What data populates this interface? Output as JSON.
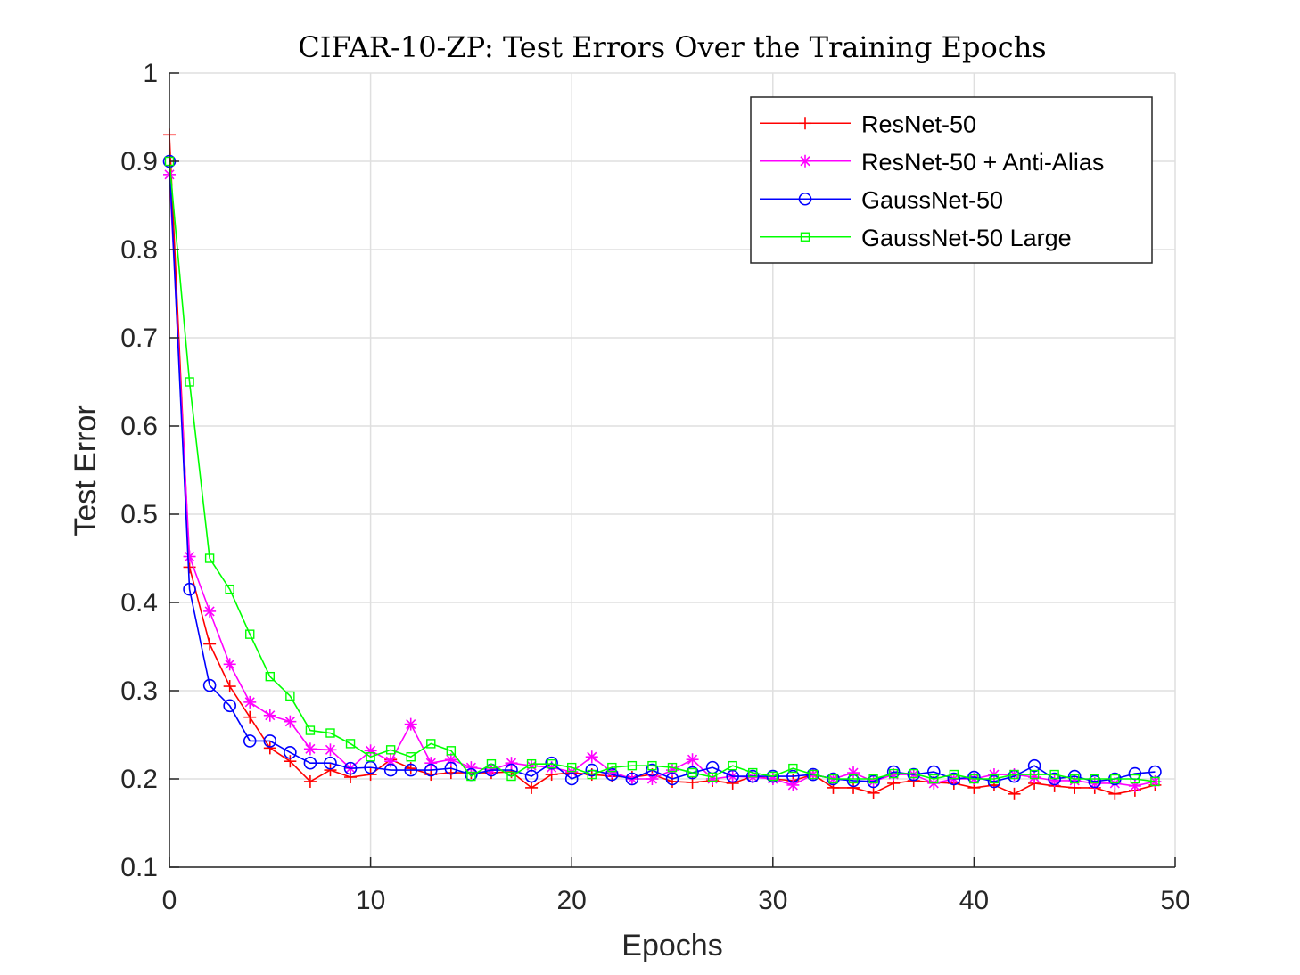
{
  "chart_data": {
    "type": "line",
    "title": "CIFAR-10-ZP: Test Errors Over the Training Epochs",
    "xlabel": "Epochs",
    "ylabel": "Test Error",
    "xlim": [
      0,
      50
    ],
    "ylim": [
      0.1,
      1
    ],
    "xticks": [
      0,
      10,
      20,
      30,
      40,
      50
    ],
    "yticks": [
      0.1,
      0.2,
      0.3,
      0.4,
      0.5,
      0.6,
      0.7,
      0.8,
      0.9,
      1
    ],
    "ytick_labels": [
      "0.1",
      "0.2",
      "0.3",
      "0.4",
      "0.5",
      "0.6",
      "0.7",
      "0.8",
      "0.9",
      "1"
    ],
    "grid": true,
    "legend_position": "top-right",
    "x": [
      0,
      1,
      2,
      3,
      4,
      5,
      6,
      7,
      8,
      9,
      10,
      11,
      12,
      13,
      14,
      15,
      16,
      17,
      18,
      19,
      20,
      21,
      22,
      23,
      24,
      25,
      26,
      27,
      28,
      29,
      30,
      31,
      32,
      33,
      34,
      35,
      36,
      37,
      38,
      39,
      40,
      41,
      42,
      43,
      44,
      45,
      46,
      47,
      48,
      49
    ],
    "series": [
      {
        "name": "ResNet-50",
        "color": "#ff0000",
        "marker": "plus",
        "values": [
          0.93,
          0.44,
          0.353,
          0.305,
          0.27,
          0.235,
          0.22,
          0.197,
          0.21,
          0.202,
          0.205,
          0.222,
          0.212,
          0.205,
          0.207,
          0.207,
          0.207,
          0.208,
          0.19,
          0.205,
          0.207,
          0.205,
          0.203,
          0.202,
          0.205,
          0.197,
          0.196,
          0.198,
          0.195,
          0.203,
          0.2,
          0.198,
          0.205,
          0.19,
          0.19,
          0.184,
          0.195,
          0.198,
          0.196,
          0.195,
          0.19,
          0.193,
          0.183,
          0.195,
          0.192,
          0.19,
          0.19,
          0.183,
          0.187,
          0.193
        ]
      },
      {
        "name": "ResNet-50 + Anti-Alias",
        "color": "#ff00ff",
        "marker": "asterisk",
        "values": [
          0.885,
          0.452,
          0.39,
          0.33,
          0.287,
          0.272,
          0.265,
          0.234,
          0.233,
          0.212,
          0.232,
          0.22,
          0.262,
          0.218,
          0.222,
          0.213,
          0.21,
          0.218,
          0.215,
          0.213,
          0.208,
          0.225,
          0.208,
          0.2,
          0.2,
          0.21,
          0.222,
          0.2,
          0.203,
          0.202,
          0.2,
          0.193,
          0.205,
          0.2,
          0.207,
          0.197,
          0.205,
          0.205,
          0.195,
          0.2,
          0.2,
          0.205,
          0.205,
          0.202,
          0.198,
          0.198,
          0.195,
          0.195,
          0.192,
          0.197
        ]
      },
      {
        "name": "GaussNet-50",
        "color": "#0000ff",
        "marker": "circle",
        "values": [
          0.9,
          0.415,
          0.306,
          0.283,
          0.243,
          0.243,
          0.23,
          0.218,
          0.218,
          0.212,
          0.213,
          0.21,
          0.21,
          0.21,
          0.212,
          0.205,
          0.21,
          0.21,
          0.203,
          0.218,
          0.2,
          0.21,
          0.205,
          0.2,
          0.21,
          0.2,
          0.207,
          0.213,
          0.203,
          0.203,
          0.203,
          0.203,
          0.205,
          0.2,
          0.198,
          0.197,
          0.208,
          0.205,
          0.208,
          0.2,
          0.202,
          0.197,
          0.203,
          0.215,
          0.2,
          0.203,
          0.197,
          0.2,
          0.206,
          0.208
        ]
      },
      {
        "name": "GaussNet-50 Large",
        "color": "#00ff00",
        "marker": "square",
        "values": [
          0.9,
          0.65,
          0.45,
          0.415,
          0.364,
          0.316,
          0.294,
          0.255,
          0.252,
          0.24,
          0.225,
          0.233,
          0.225,
          0.24,
          0.232,
          0.203,
          0.217,
          0.203,
          0.217,
          0.217,
          0.213,
          0.205,
          0.213,
          0.215,
          0.215,
          0.213,
          0.207,
          0.202,
          0.215,
          0.207,
          0.203,
          0.212,
          0.205,
          0.2,
          0.2,
          0.2,
          0.206,
          0.206,
          0.2,
          0.205,
          0.2,
          0.2,
          0.205,
          0.205,
          0.205,
          0.2,
          0.2,
          0.2,
          0.2,
          0.197
        ]
      }
    ]
  }
}
